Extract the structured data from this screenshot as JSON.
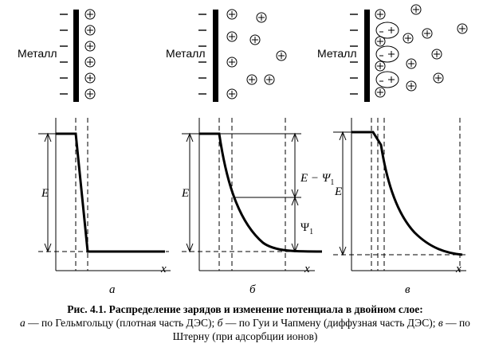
{
  "metal_label": "Металл",
  "panels": [
    {
      "letter": "а",
      "x_axis": "x",
      "potential_label": "E"
    },
    {
      "letter": "б",
      "x_axis": "x",
      "potential_label": "E",
      "label_upper": "E − Ψ",
      "label_lower": "Ψ",
      "subscript": "1"
    },
    {
      "letter": "в",
      "x_axis": "x",
      "potential_label": "E"
    }
  ],
  "charge_symbols": {
    "negative": "−",
    "positive": "+"
  },
  "caption": {
    "title": "Рис.  4.1. Распределение зарядов и изменение потенциала в двойном слое:",
    "part_a_letter": "а",
    "part_a_text": " — по Гельмгольцу (плотная часть ДЭС); ",
    "part_b_letter": "б",
    "part_b_text": " — по Гуи и Чапмену (диффузная часть ДЭС); ",
    "part_c_letter": "в",
    "part_c_text": " — по Штерну (при адсорбции ионов)"
  }
}
